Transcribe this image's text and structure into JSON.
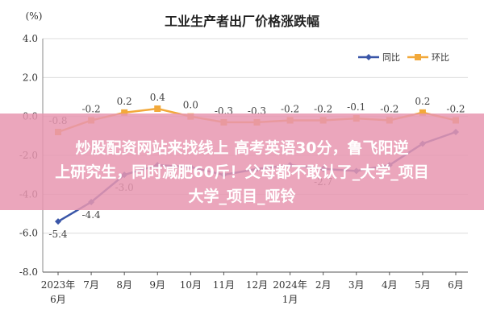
{
  "chart_data": {
    "type": "line",
    "title": "工业生产者出厂价格涨跌幅",
    "unit_label": "(%)",
    "categories": [
      "2023年6月",
      "7月",
      "8月",
      "9月",
      "10月",
      "11月",
      "12月",
      "2024年1月",
      "2月",
      "3月",
      "4月",
      "5月",
      "6月"
    ],
    "x_tick_labels": [
      {
        "line1": "2023年",
        "line2": "6月"
      },
      {
        "line1": "7月",
        "line2": ""
      },
      {
        "line1": "8月",
        "line2": ""
      },
      {
        "line1": "9月",
        "line2": ""
      },
      {
        "line1": "10月",
        "line2": ""
      },
      {
        "line1": "11月",
        "line2": ""
      },
      {
        "line1": "12月",
        "line2": ""
      },
      {
        "line1": "2024年",
        "line2": "1月"
      },
      {
        "line1": "2月",
        "line2": ""
      },
      {
        "line1": "3月",
        "line2": ""
      },
      {
        "line1": "4月",
        "line2": ""
      },
      {
        "line1": "5月",
        "line2": ""
      },
      {
        "line1": "6月",
        "line2": ""
      }
    ],
    "series": [
      {
        "name": "同比",
        "color": "#3a56a8",
        "values": [
          -5.4,
          -4.4,
          -3.0,
          -2.5,
          -2.6,
          -3.0,
          -2.7,
          -2.5,
          -2.7,
          -2.8,
          -2.5,
          -1.4,
          -0.8
        ],
        "labels": [
          "-5.4",
          "-4.4",
          "-3.0",
          "",
          "",
          "",
          "",
          "",
          "-2.7",
          "",
          "",
          "",
          ""
        ]
      },
      {
        "name": "环比",
        "color": "#f2a93b",
        "values": [
          -0.8,
          -0.2,
          0.2,
          0.4,
          0.0,
          -0.3,
          -0.3,
          -0.2,
          -0.2,
          -0.1,
          -0.2,
          0.2,
          -0.2
        ],
        "labels": [
          "-0.8",
          "-0.2",
          "0.2",
          "0.4",
          "0.0",
          "-0.3",
          "-0.3",
          "-0.2",
          "-0.2",
          "-0.1",
          "-0.2",
          "0.2",
          "-0.2"
        ]
      }
    ],
    "ylim": [
      -8.0,
      4.0
    ],
    "yticks": [
      "4.0",
      "2.0",
      "0.0",
      "-2.0",
      "-4.0",
      "-6.0",
      "-8.0"
    ],
    "grid": true,
    "legend_position": "top-right"
  },
  "overlay": {
    "line1": "炒股配资网站来找线上 高考英语30分，鲁飞阳逆",
    "line2": "上研究生，同时减肥60斤！父母都不敢认了_大学_项目",
    "line3": "大学_项目_哑铃"
  }
}
